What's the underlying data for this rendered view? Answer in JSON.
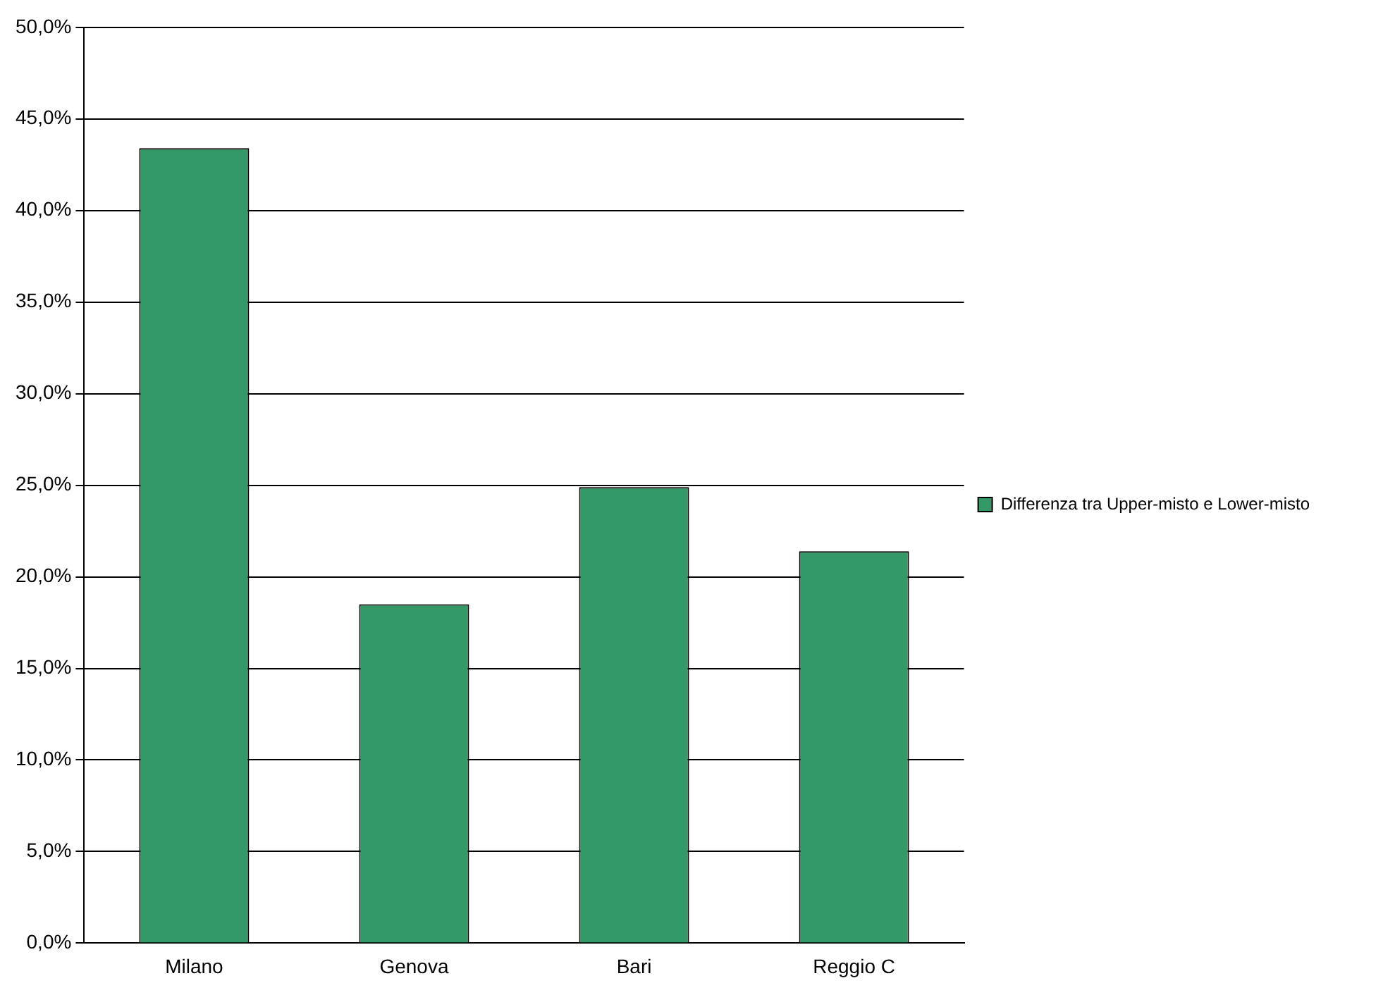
{
  "chart_data": {
    "type": "bar",
    "categories": [
      "Milano",
      "Genova",
      "Bari",
      "Reggio C"
    ],
    "series": [
      {
        "name": "Differenza tra Upper-misto e Lower-misto",
        "color": "#339966",
        "values": [
          43.4,
          18.5,
          24.9,
          21.4
        ]
      }
    ],
    "ylim": [
      0,
      50
    ],
    "yticks": [
      {
        "value": 0,
        "label": "0,0%"
      },
      {
        "value": 5,
        "label": "5,0%"
      },
      {
        "value": 10,
        "label": "10,0%"
      },
      {
        "value": 15,
        "label": "15,0%"
      },
      {
        "value": 20,
        "label": "20,0%"
      },
      {
        "value": 25,
        "label": "25,0%"
      },
      {
        "value": 30,
        "label": "30,0%"
      },
      {
        "value": 35,
        "label": "35,0%"
      },
      {
        "value": 40,
        "label": "40,0%"
      },
      {
        "value": 45,
        "label": "45,0%"
      },
      {
        "value": 50,
        "label": "50,0%"
      }
    ],
    "grid": "y",
    "legend": "right"
  }
}
